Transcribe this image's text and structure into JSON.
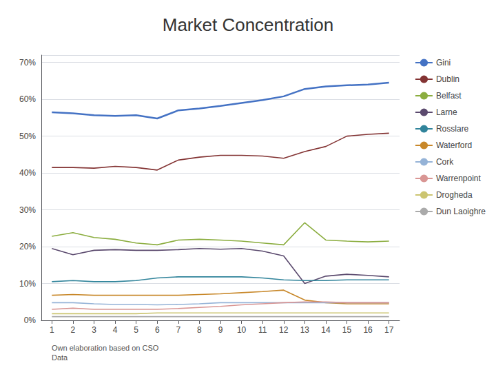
{
  "chart_data": {
    "type": "line",
    "title": "Market Concentration",
    "x": [
      1,
      2,
      3,
      4,
      5,
      6,
      7,
      8,
      9,
      10,
      11,
      12,
      13,
      14,
      15,
      16,
      17
    ],
    "series": [
      {
        "name": "Gini",
        "color": "#4472C4",
        "values": [
          0.565,
          0.562,
          0.557,
          0.555,
          0.557,
          0.548,
          0.57,
          0.575,
          0.582,
          0.59,
          0.598,
          0.608,
          0.628,
          0.635,
          0.638,
          0.64,
          0.645
        ]
      },
      {
        "name": "Dublin",
        "color": "#833333",
        "values": [
          0.415,
          0.415,
          0.413,
          0.418,
          0.415,
          0.408,
          0.435,
          0.443,
          0.448,
          0.448,
          0.446,
          0.44,
          0.458,
          0.472,
          0.5,
          0.505,
          0.508
        ]
      },
      {
        "name": "Belfast",
        "color": "#8BAD3F",
        "values": [
          0.228,
          0.238,
          0.225,
          0.22,
          0.21,
          0.205,
          0.218,
          0.22,
          0.218,
          0.215,
          0.21,
          0.205,
          0.265,
          0.218,
          0.215,
          0.213,
          0.215
        ]
      },
      {
        "name": "Larne",
        "color": "#5B4A6E",
        "values": [
          0.195,
          0.178,
          0.19,
          0.192,
          0.19,
          0.19,
          0.192,
          0.195,
          0.193,
          0.195,
          0.188,
          0.175,
          0.1,
          0.12,
          0.125,
          0.122,
          0.118
        ]
      },
      {
        "name": "Rosslare",
        "color": "#31849B",
        "values": [
          0.105,
          0.108,
          0.105,
          0.105,
          0.108,
          0.115,
          0.118,
          0.118,
          0.118,
          0.118,
          0.115,
          0.11,
          0.108,
          0.108,
          0.11,
          0.11,
          0.11
        ]
      },
      {
        "name": "Waterford",
        "color": "#C8882A",
        "values": [
          0.068,
          0.07,
          0.068,
          0.068,
          0.068,
          0.068,
          0.068,
          0.07,
          0.072,
          0.075,
          0.078,
          0.082,
          0.055,
          0.048,
          0.045,
          0.045,
          0.045
        ]
      },
      {
        "name": "Cork",
        "color": "#95B3D7",
        "values": [
          0.048,
          0.048,
          0.045,
          0.043,
          0.043,
          0.042,
          0.043,
          0.045,
          0.048,
          0.048,
          0.048,
          0.048,
          0.048,
          0.048,
          0.048,
          0.048,
          0.048
        ]
      },
      {
        "name": "Warrenpoint",
        "color": "#D99694",
        "values": [
          0.03,
          0.033,
          0.03,
          0.03,
          0.03,
          0.03,
          0.032,
          0.035,
          0.038,
          0.042,
          0.045,
          0.048,
          0.05,
          0.05,
          0.048,
          0.048,
          0.048
        ]
      },
      {
        "name": "Drogheda",
        "color": "#CCC571",
        "values": [
          0.018,
          0.018,
          0.018,
          0.018,
          0.018,
          0.02,
          0.02,
          0.02,
          0.02,
          0.02,
          0.02,
          0.02,
          0.02,
          0.02,
          0.02,
          0.02,
          0.02
        ]
      },
      {
        "name": "Dun Laoighre",
        "color": "#AAAAAA",
        "values": [
          0.01,
          0.01,
          0.01,
          0.01,
          0.01,
          0.01,
          0.01,
          0.01,
          0.01,
          0.01,
          0.01,
          0.01,
          0.01,
          0.01,
          0.01,
          0.01,
          0.01
        ]
      }
    ],
    "xlim": [
      0.5,
      17.5
    ],
    "xticks": [
      1,
      2,
      3,
      4,
      5,
      6,
      7,
      8,
      9,
      10,
      11,
      12,
      13,
      14,
      15,
      16,
      17
    ],
    "ylim": [
      0.0,
      0.72
    ],
    "yticks": [
      {
        "value": 0.0,
        "label": "0%"
      },
      {
        "value": 0.1,
        "label": "10%"
      },
      {
        "value": 0.2,
        "label": "20%"
      },
      {
        "value": 0.3,
        "label": "30%"
      },
      {
        "value": 0.4,
        "label": "40%"
      },
      {
        "value": 0.5,
        "label": "50%"
      },
      {
        "value": 0.6,
        "label": "60%"
      },
      {
        "value": 0.7,
        "label": "70%"
      }
    ],
    "grid": true,
    "legend": "right",
    "annotations": [
      "Own elaboration based on CSO\nData"
    ]
  }
}
